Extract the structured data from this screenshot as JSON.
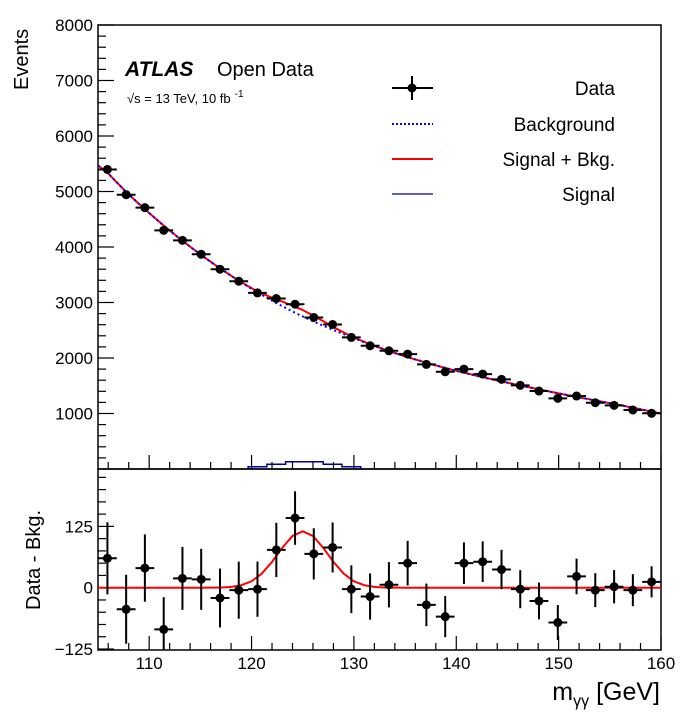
{
  "chart_data": {
    "type": "scatter",
    "xlim": [
      105,
      160
    ],
    "xticks": [
      110,
      120,
      130,
      140,
      150,
      160
    ],
    "xtick_labels": [
      "110",
      "120",
      "130",
      "140",
      "150",
      "160"
    ],
    "xlabel": {
      "symbol": "m",
      "subscript": "γγ",
      "unit": "[GeV]"
    },
    "upper_panel": {
      "ylabel": "Events",
      "ylim": [
        0,
        8000
      ],
      "yticks": [
        1000,
        2000,
        3000,
        4000,
        5000,
        6000,
        7000,
        8000
      ],
      "ytick_labels": [
        "1000",
        "2000",
        "3000",
        "4000",
        "5000",
        "6000",
        "7000",
        "8000"
      ],
      "data": {
        "name": "Data",
        "x": [
          105.92,
          107.75,
          109.58,
          111.42,
          113.25,
          115.08,
          116.92,
          118.75,
          120.58,
          122.42,
          124.25,
          126.08,
          127.92,
          129.75,
          131.58,
          133.42,
          135.25,
          137.08,
          138.92,
          140.75,
          142.58,
          144.42,
          146.25,
          148.08,
          149.92,
          151.75,
          153.58,
          155.42,
          157.25,
          159.08
        ],
        "y": [
          5397,
          4942,
          4709,
          4300,
          4120,
          3869,
          3599,
          3383,
          3173,
          3072,
          2969,
          2730,
          2604,
          2371,
          2220,
          2130,
          2070,
          1885,
          1752,
          1800,
          1710,
          1615,
          1507,
          1405,
          1273,
          1315,
          1194,
          1147,
          1063,
          1004
        ],
        "yerr": [
          73.5,
          70.3,
          68.6,
          65.6,
          64.2,
          62.2,
          60,
          58.2,
          56.3,
          55.4,
          54.5,
          52.2,
          51,
          48.7,
          47.1,
          46.2,
          45.5,
          43.4,
          41.9,
          42.4,
          41.4,
          40.2,
          38.8,
          37.5,
          35.7,
          36.3,
          34.6,
          33.9,
          32.6,
          31.7
        ],
        "bin_width": 1.833
      },
      "background": {
        "name": "Background",
        "x": [
          105,
          105.92,
          107.75,
          109.58,
          111.42,
          113.25,
          115.08,
          116.92,
          118.75,
          120.58,
          122.42,
          124.25,
          126.08,
          127.92,
          129.75,
          131.58,
          133.42,
          135.25,
          137.08,
          138.92,
          140.75,
          142.58,
          144.42,
          146.25,
          148.08,
          149.92,
          151.75,
          153.58,
          155.42,
          157.25,
          159.08,
          160
        ],
        "y": [
          5470,
          5340,
          4990,
          4680,
          4385,
          4110,
          3855,
          3615,
          3390,
          3180,
          2990,
          2815,
          2655,
          2510,
          2375,
          2245,
          2125,
          2015,
          1915,
          1820,
          1735,
          1655,
          1578,
          1505,
          1435,
          1365,
          1300,
          1235,
          1170,
          1105,
          1035,
          1000
        ]
      },
      "signal_histogram": {
        "name": "Signal",
        "bin_edges": [
          119.67,
          121.5,
          123.33,
          125.17,
          127,
          128.83,
          130.67
        ],
        "values": [
          40,
          85,
          130,
          130,
          85,
          40
        ]
      }
    },
    "signal_curve": {
      "x": [
        115,
        116,
        117,
        118,
        119,
        120,
        121,
        122,
        123,
        124,
        125,
        126,
        127,
        128,
        129,
        130,
        131,
        132,
        133,
        134,
        135
      ],
      "y": [
        0,
        0.1,
        0.4,
        1.6,
        5.1,
        13.1,
        28.7,
        52.7,
        81.3,
        105.5,
        115,
        105.5,
        81.3,
        52.7,
        28.7,
        13.1,
        5.1,
        1.6,
        0.4,
        0.1,
        0
      ]
    },
    "lower_panel": {
      "ylabel": "Data - Bkg.",
      "ylim": [
        -127,
        242
      ],
      "yticks": [
        -125,
        0,
        125
      ],
      "ytick_labels": [
        "−125",
        "0",
        "125"
      ],
      "residual": [
        60,
        -44,
        40,
        -85,
        19,
        17,
        -21,
        -5,
        -3,
        77,
        142,
        69,
        82,
        -3,
        -18,
        6,
        50,
        -35,
        -59,
        50,
        53,
        37,
        -3,
        -27,
        -71,
        23,
        -5,
        2,
        -5,
        12
      ]
    },
    "legend": {
      "placement": "top-right",
      "entries": [
        {
          "label": "Data",
          "style": "marker"
        },
        {
          "label": "Background",
          "style": "dotted",
          "color": "#0000ff"
        },
        {
          "label": "Signal + Bkg.",
          "style": "solid",
          "color": "#ff0000"
        },
        {
          "label": "Signal",
          "style": "thin",
          "color": "#0000a0"
        }
      ]
    },
    "colors": {
      "data": "#000000",
      "background": "#0000ff",
      "signal_plus_bkg": "#ff0000",
      "signal": "#0000a0"
    }
  },
  "annotations": {
    "experiment": "ATLAS",
    "label": "Open Data",
    "energy_lumi": "√s = 13 TeV, 10 fb",
    "lumi_exponent": "-1"
  }
}
